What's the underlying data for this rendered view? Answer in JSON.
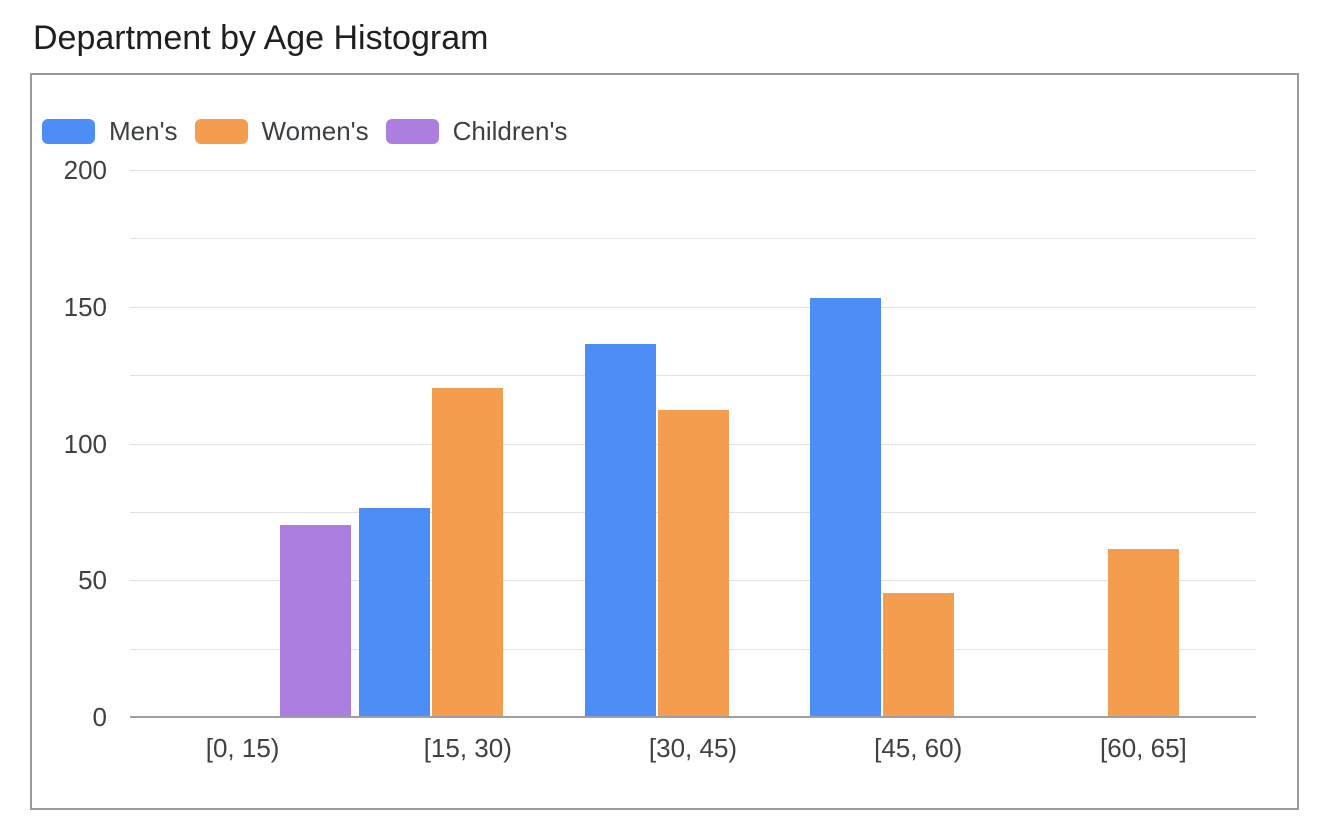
{
  "chart_data": {
    "type": "bar",
    "title": "Department by Age Histogram",
    "categories": [
      "[0, 15)",
      "[15, 30)",
      "[30, 45)",
      "[45, 60)",
      "[60, 65]"
    ],
    "series": [
      {
        "name": "Men's",
        "color": "#4d8df6",
        "values": [
          null,
          76,
          136,
          153,
          null
        ]
      },
      {
        "name": "Women's",
        "color": "#f49d4e",
        "values": [
          null,
          120,
          112,
          45,
          61
        ]
      },
      {
        "name": "Children's",
        "color": "#ab7ee0",
        "values": [
          70,
          null,
          null,
          null,
          null
        ]
      }
    ],
    "xlabel": "",
    "ylabel": "",
    "ylim": [
      0,
      200
    ],
    "ytick_labels": [
      0,
      50,
      100,
      150,
      200
    ],
    "gridline_step": 25,
    "grid": true,
    "legend_position": "top-left",
    "colors": {
      "title_text": "#1f1f1f",
      "axis_text": "#404040",
      "legend_text": "#3c4043",
      "gridline": "#e2e2e2",
      "baseline": "#9aa0a6",
      "box_border": "#9a9a9a",
      "background": "#ffffff"
    }
  }
}
